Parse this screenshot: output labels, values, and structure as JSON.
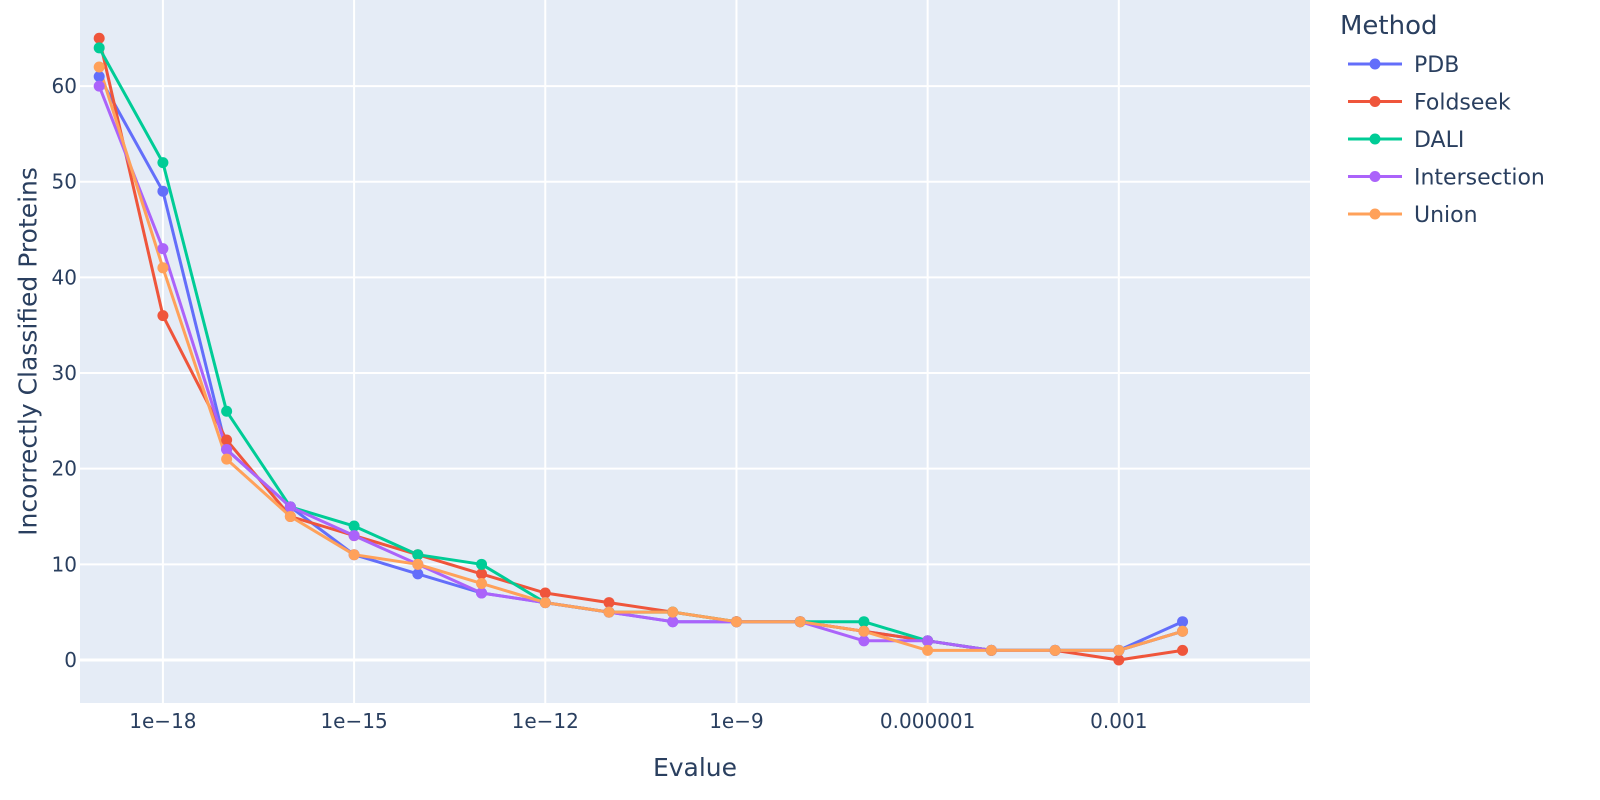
{
  "chart_data": {
    "type": "line",
    "xlabel": "Evalue",
    "ylabel": "Incorrectly Classified Proteins",
    "x_scale": "log",
    "x_ticks": [
      {
        "value": 1e-18,
        "label": "1e−18"
      },
      {
        "value": 1e-15,
        "label": "1e−15"
      },
      {
        "value": 1e-12,
        "label": "1e−12"
      },
      {
        "value": 1e-09,
        "label": "1e−9"
      },
      {
        "value": 1e-06,
        "label": "0.000001"
      },
      {
        "value": 0.001,
        "label": "0.001"
      }
    ],
    "y_ticks": [
      0,
      10,
      20,
      30,
      40,
      50,
      60
    ],
    "xlim": [
      5e-20,
      1
    ],
    "ylim": [
      -4.5,
      69
    ],
    "grid": true,
    "legend_title": "Method",
    "legend_position": "right",
    "plot_bgcolor": "#e5ecf6",
    "x": [
      1e-19,
      1e-18,
      1e-17,
      1e-16,
      1e-15,
      1e-14,
      1e-13,
      1e-12,
      1e-11,
      1e-10,
      1e-09,
      1e-08,
      1e-07,
      1e-06,
      1e-05,
      0.0001,
      0.001,
      0.01
    ],
    "series": [
      {
        "name": "PDB",
        "color": "#636efa",
        "values": [
          61,
          49,
          22,
          16,
          11,
          9,
          7,
          6,
          5,
          4,
          4,
          4,
          3,
          2,
          1,
          1,
          1,
          4
        ]
      },
      {
        "name": "Foldseek",
        "color": "#ef553b",
        "values": [
          65,
          36,
          23,
          15,
          13,
          11,
          9,
          7,
          6,
          5,
          4,
          4,
          3,
          2,
          1,
          1,
          0,
          1
        ]
      },
      {
        "name": "DALI",
        "color": "#00cc96",
        "values": [
          64,
          52,
          26,
          16,
          14,
          11,
          10,
          6,
          5,
          5,
          4,
          4,
          4,
          2,
          1,
          1,
          1,
          3
        ]
      },
      {
        "name": "Intersection",
        "color": "#ab63fa",
        "values": [
          60,
          43,
          22,
          16,
          13,
          10,
          7,
          6,
          5,
          4,
          4,
          4,
          2,
          2,
          1,
          1,
          1,
          3
        ]
      },
      {
        "name": "Union",
        "color": "#ffa15a",
        "values": [
          62,
          41,
          21,
          15,
          11,
          10,
          8,
          6,
          5,
          5,
          4,
          4,
          3,
          1,
          1,
          1,
          1,
          3
        ]
      }
    ]
  }
}
